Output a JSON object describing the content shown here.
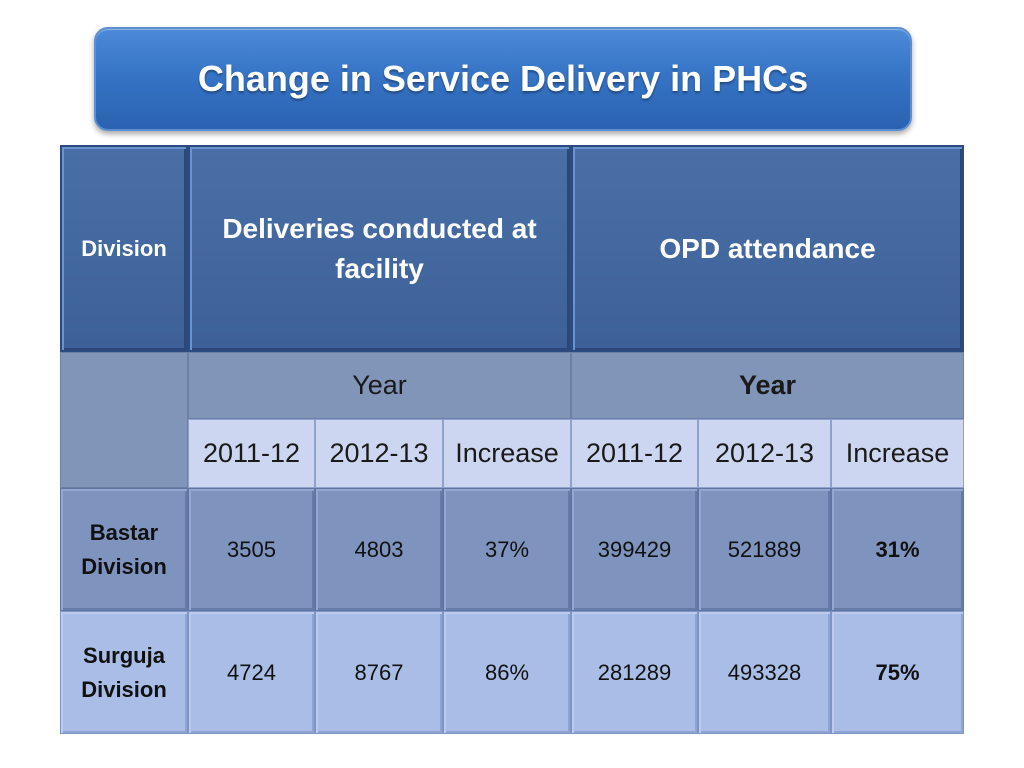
{
  "title": "Change in Service Delivery in PHCs",
  "table": {
    "header": {
      "division": "Division",
      "group1": "Deliveries conducted at facility",
      "group2": "OPD attendance",
      "year_left": "Year",
      "year_right": "Year",
      "cols": [
        "2011-12",
        "2012-13",
        "Increase",
        "2011-12",
        "2012-13",
        "Increase"
      ]
    },
    "rows": [
      {
        "division": "Bastar Division",
        "values": [
          "3505",
          "4803",
          "37%",
          "399429",
          "521889",
          "31%"
        ]
      },
      {
        "division": "Surguja Division",
        "values": [
          "4724",
          "8767",
          "86%",
          "281289",
          "493328",
          "75%"
        ]
      }
    ]
  }
}
